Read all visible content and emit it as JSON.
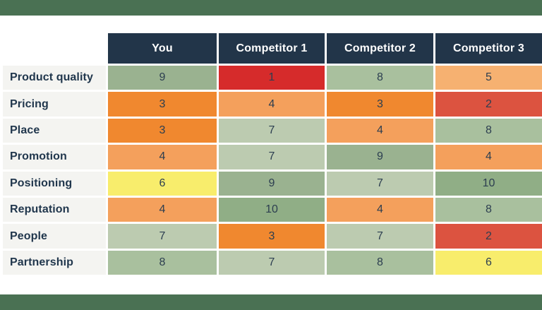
{
  "page": {
    "background": "#ffffff",
    "top_bar_color": "#4a7153",
    "bottom_bar_color": "#4a7153"
  },
  "table": {
    "header": {
      "bg": "#223549",
      "text_color": "#ffffff",
      "columns": [
        "You",
        "Competitor 1",
        "Competitor 2",
        "Competitor 3"
      ]
    },
    "row_label_bg": "#f4f4f1",
    "row_label_color": "#21374d",
    "cell_text_color": "#2c3e50",
    "rows": [
      {
        "label": "Product quality",
        "values": [
          9,
          1,
          8,
          5
        ]
      },
      {
        "label": "Pricing",
        "values": [
          3,
          4,
          3,
          2
        ]
      },
      {
        "label": "Place",
        "values": [
          3,
          7,
          4,
          8
        ]
      },
      {
        "label": "Promotion",
        "values": [
          4,
          7,
          9,
          4
        ]
      },
      {
        "label": "Positioning",
        "values": [
          6,
          9,
          7,
          10
        ]
      },
      {
        "label": "Reputation",
        "values": [
          4,
          10,
          4,
          8
        ]
      },
      {
        "label": "People",
        "values": [
          7,
          3,
          7,
          2
        ]
      },
      {
        "label": "Partnership",
        "values": [
          8,
          7,
          8,
          6
        ]
      }
    ],
    "value_colors": {
      "1": "#d62b2b",
      "2": "#dc5340",
      "3": "#f0882f",
      "4": "#f4a05c",
      "5": "#f6b171",
      "6": "#f8ed6c",
      "7": "#bccbb0",
      "8": "#a9c09e",
      "9": "#9ab290",
      "10": "#90ae86"
    }
  },
  "chart_data": {
    "type": "heatmap",
    "title": "",
    "columns": [
      "You",
      "Competitor 1",
      "Competitor 2",
      "Competitor 3"
    ],
    "rows": [
      "Product quality",
      "Pricing",
      "Place",
      "Promotion",
      "Positioning",
      "Reputation",
      "People",
      "Partnership"
    ],
    "values": [
      [
        9,
        1,
        8,
        5
      ],
      [
        3,
        4,
        3,
        2
      ],
      [
        3,
        7,
        4,
        8
      ],
      [
        4,
        7,
        9,
        4
      ],
      [
        6,
        9,
        7,
        10
      ],
      [
        4,
        10,
        4,
        8
      ],
      [
        7,
        3,
        7,
        2
      ],
      [
        8,
        7,
        8,
        6
      ]
    ],
    "scale": {
      "min": 1,
      "max": 10,
      "low_color": "#d62b2b",
      "mid_color": "#f8ed6c",
      "high_color": "#90ae86"
    },
    "legend": "none",
    "grid": "white 3px gaps between cells"
  }
}
